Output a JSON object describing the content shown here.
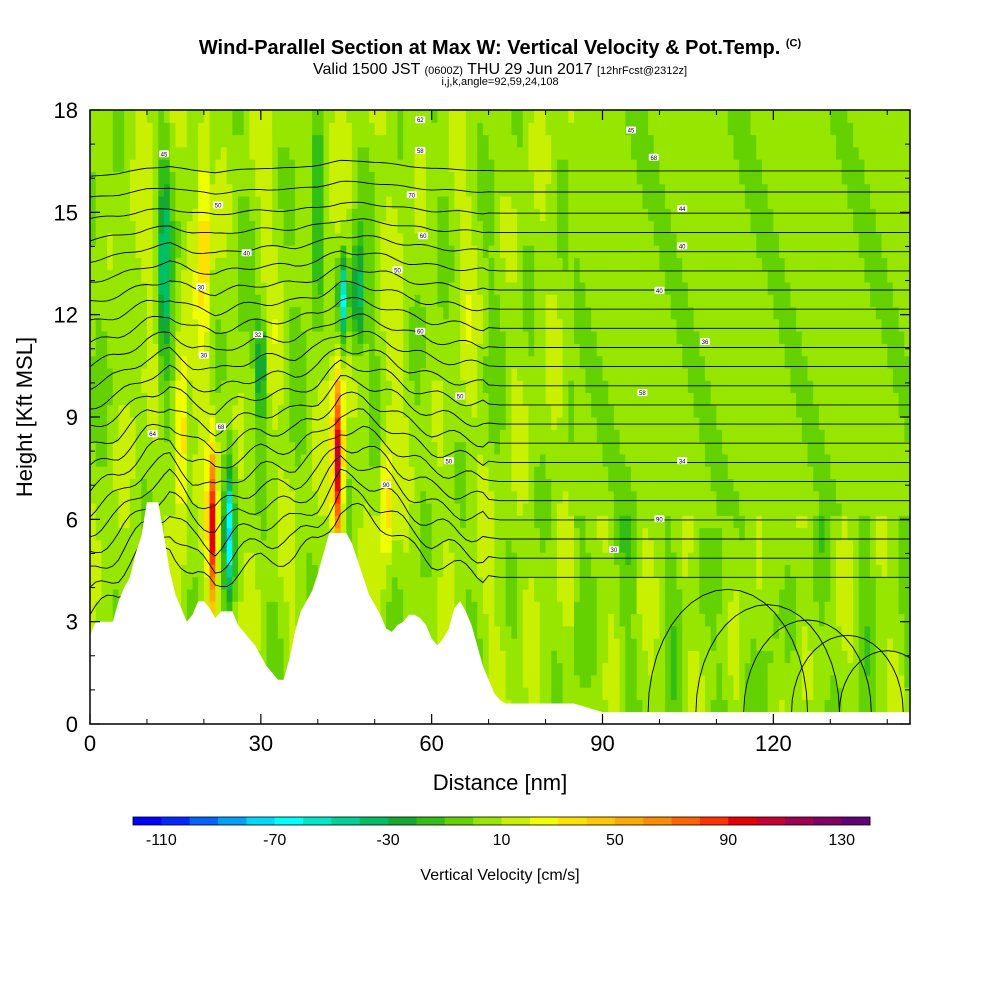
{
  "header": {
    "title": "Wind-Parallel Section at Max W: Vertical Velocity & Pot.Temp.",
    "copyright": "(C)",
    "valid_main_1": "Valid 1500 JST",
    "valid_utc": "(0600Z)",
    "valid_main_2": "THU 29 Jun 2017",
    "forecast_info": "[12hrFcst@2312z]",
    "grid_info": "i,j,k,angle=92,59,24,108"
  },
  "chart_data": {
    "type": "heatmap",
    "xlabel": "Distance [nm]",
    "ylabel": "Height [Kft MSL]",
    "xlim": [
      0,
      144
    ],
    "ylim": [
      0,
      18
    ],
    "x_ticks": [
      0,
      30,
      60,
      90,
      120
    ],
    "y_ticks": [
      0,
      3,
      6,
      9,
      12,
      15,
      18
    ],
    "colorbar": {
      "label": "Vertical Velocity [cm/s]",
      "tick_labels": [
        "-110",
        "-70",
        "-30",
        "10",
        "50",
        "90",
        "130"
      ],
      "tick_values": [
        -110,
        -70,
        -30,
        10,
        50,
        90,
        130
      ],
      "min": -120,
      "step": 10,
      "colors": [
        "#0000ff",
        "#0028ff",
        "#0064ff",
        "#00a0ff",
        "#00d7ff",
        "#00ffff",
        "#00e6c8",
        "#00d296",
        "#00be64",
        "#14aa32",
        "#32be14",
        "#64d200",
        "#96e600",
        "#c8f000",
        "#f0ff00",
        "#ffe100",
        "#ffc800",
        "#ffaa00",
        "#ff8c00",
        "#ff6400",
        "#ff3200",
        "#e60000",
        "#c80032",
        "#a00050",
        "#820064",
        "#640078"
      ]
    },
    "terrain_profile": {
      "x": [
        0,
        1,
        2,
        3,
        4,
        5,
        6,
        7,
        8,
        9,
        10,
        11,
        12,
        13,
        14,
        15,
        16,
        17,
        18,
        19,
        20,
        21,
        22,
        23,
        24,
        25,
        26,
        27,
        28,
        29,
        30,
        31,
        32,
        33,
        34,
        35,
        36,
        37,
        38,
        39,
        40,
        41,
        42,
        43,
        44,
        45,
        46,
        47,
        48,
        49,
        50,
        51,
        52,
        53,
        54,
        55,
        56,
        57,
        58,
        59,
        60,
        61,
        62,
        63,
        64,
        65,
        66,
        67,
        68,
        69,
        70,
        71,
        72,
        73,
        74,
        75,
        80,
        85,
        90,
        100,
        110,
        120,
        130,
        140,
        144
      ],
      "y": [
        2.6,
        3.0,
        3.0,
        3.0,
        3.0,
        3.6,
        4.0,
        4.3,
        5.0,
        5.5,
        6.5,
        6.5,
        6.5,
        5.5,
        4.5,
        3.8,
        3.4,
        3.0,
        3.2,
        3.6,
        3.6,
        3.4,
        3.1,
        3.3,
        3.3,
        3.3,
        2.9,
        2.7,
        2.5,
        2.3,
        2.0,
        1.7,
        1.5,
        1.3,
        1.3,
        1.9,
        2.7,
        3.3,
        3.6,
        3.9,
        4.4,
        5.0,
        5.6,
        5.6,
        5.6,
        5.6,
        5.3,
        4.8,
        4.3,
        3.8,
        3.5,
        3.2,
        2.8,
        2.7,
        2.9,
        3.0,
        3.2,
        3.2,
        3.1,
        2.9,
        2.5,
        2.3,
        2.5,
        2.8,
        3.4,
        3.6,
        3.3,
        2.9,
        2.3,
        1.7,
        1.3,
        0.9,
        0.7,
        0.6,
        0.6,
        0.6,
        0.6,
        0.6,
        0.35,
        0.35,
        0.35,
        0.35,
        0.35,
        0.35,
        0.35
      ]
    },
    "pot_temp_contours_base": {
      "x": [
        0,
        5,
        10,
        14,
        18,
        22,
        26,
        30,
        36,
        40,
        44,
        48,
        52,
        56,
        60,
        64,
        68,
        72,
        80,
        90,
        100,
        110,
        120,
        130,
        144
      ],
      "y": [
        3.2,
        3.8,
        4.8,
        5.2,
        4.4,
        4.0,
        4.5,
        4.8,
        4.9,
        5.4,
        6.3,
        6.2,
        5.8,
        5.2,
        4.8,
        4.6,
        4.4,
        4.3,
        4.3,
        4.3,
        4.3,
        4.3,
        4.3,
        4.3,
        4.3
      ],
      "spacing_kft": 0.62,
      "count": 22
    },
    "pot_temp_contour_labels": [
      {
        "text": "64",
        "x": 11,
        "y": 8.5
      },
      {
        "text": "68",
        "x": 23,
        "y": 8.7
      },
      {
        "text": "30",
        "x": 20,
        "y": 10.8
      },
      {
        "text": "32",
        "x": 29.5,
        "y": 11.4
      },
      {
        "text": "30",
        "x": 19.5,
        "y": 12.8
      },
      {
        "text": "40",
        "x": 27.5,
        "y": 13.8
      },
      {
        "text": "50",
        "x": 22.5,
        "y": 15.2
      },
      {
        "text": "45",
        "x": 13,
        "y": 16.7
      },
      {
        "text": "60",
        "x": 58.5,
        "y": 14.3
      },
      {
        "text": "70",
        "x": 56.5,
        "y": 15.5
      },
      {
        "text": "58",
        "x": 58,
        "y": 16.8
      },
      {
        "text": "62",
        "x": 58,
        "y": 17.7
      },
      {
        "text": "50",
        "x": 54,
        "y": 13.3
      },
      {
        "text": "60",
        "x": 58,
        "y": 11.5
      },
      {
        "text": "50",
        "x": 65,
        "y": 9.6
      },
      {
        "text": "50",
        "x": 63,
        "y": 7.7
      },
      {
        "text": "90",
        "x": 52,
        "y": 7.0
      },
      {
        "text": "45",
        "x": 95,
        "y": 17.4
      },
      {
        "text": "68",
        "x": 99,
        "y": 16.6
      },
      {
        "text": "44",
        "x": 104,
        "y": 15.1
      },
      {
        "text": "40",
        "x": 104,
        "y": 14.0
      },
      {
        "text": "40",
        "x": 100,
        "y": 12.7
      },
      {
        "text": "36",
        "x": 108,
        "y": 11.2
      },
      {
        "text": "58",
        "x": 97,
        "y": 9.7
      },
      {
        "text": "34",
        "x": 104,
        "y": 7.7
      },
      {
        "text": "90",
        "x": 100,
        "y": 6.0
      },
      {
        "text": "30",
        "x": 92,
        "y": 5.1
      }
    ],
    "updraft_core": {
      "x": 43.5,
      "y_top": 9.6,
      "y_bottom": 5.6,
      "value": 100
    },
    "downdraft_core": {
      "x": 44.5,
      "y_top": 13.4,
      "y_bottom": 11.6,
      "value": -70
    },
    "updraft_core_2": {
      "x": 21.5,
      "y_top": 7.5,
      "y_bottom": 3.8,
      "value": 90
    },
    "downdraft_core_2": {
      "x": 24.5,
      "y_top": 7.0,
      "y_bottom": 4.3,
      "value": -70
    }
  }
}
